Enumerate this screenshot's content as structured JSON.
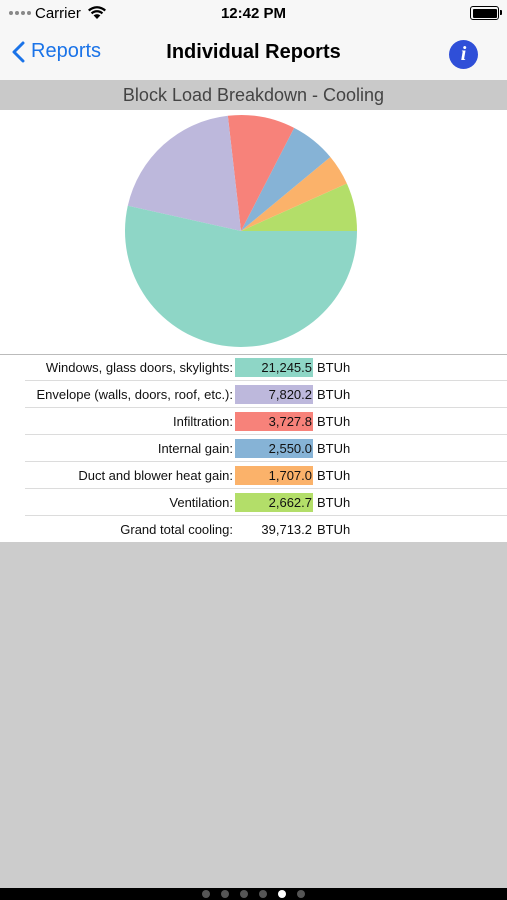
{
  "status_bar": {
    "carrier": "Carrier",
    "time": "12:42 PM"
  },
  "nav": {
    "back_label": "Reports",
    "title": "Individual Reports",
    "info_symbol": "i"
  },
  "report": {
    "header": "Block Load Breakdown - Cooling"
  },
  "chart_data": {
    "type": "pie",
    "categories": [
      "Windows, glass doors, skylights:",
      "Envelope (walls, doors, roof, etc.):",
      "Infiltration:",
      "Internal gain:",
      "Duct and blower heat gain:",
      "Ventilation:"
    ],
    "values": [
      21245.5,
      7820.2,
      3727.8,
      2550.0,
      1707.0,
      2662.7
    ],
    "colors": [
      "#8ed6c6",
      "#bdb8dc",
      "#f7827a",
      "#86b3d6",
      "#fbb26a",
      "#b3de69"
    ],
    "start_angle_deg": 0,
    "slice_order": [
      5,
      4,
      3,
      2,
      1,
      0
    ]
  },
  "rows": [
    {
      "label": "Windows, glass doors, skylights:",
      "value": "21,245.5",
      "unit": "BTUh",
      "color": "#8ed6c6"
    },
    {
      "label": "Envelope (walls, doors, roof, etc.):",
      "value": "7,820.2",
      "unit": "BTUh",
      "color": "#bdb8dc"
    },
    {
      "label": "Infiltration:",
      "value": "3,727.8",
      "unit": "BTUh",
      "color": "#f7827a"
    },
    {
      "label": "Internal gain:",
      "value": "2,550.0",
      "unit": "BTUh",
      "color": "#86b3d6"
    },
    {
      "label": "Duct and blower heat gain:",
      "value": "1,707.0",
      "unit": "BTUh",
      "color": "#fbb26a"
    },
    {
      "label": "Ventilation:",
      "value": "2,662.7",
      "unit": "BTUh",
      "color": "#b3de69"
    }
  ],
  "total": {
    "label": "Grand total cooling:",
    "value": "39,713.2",
    "unit": "BTUh"
  },
  "pager": {
    "count": 6,
    "active_index": 4
  }
}
